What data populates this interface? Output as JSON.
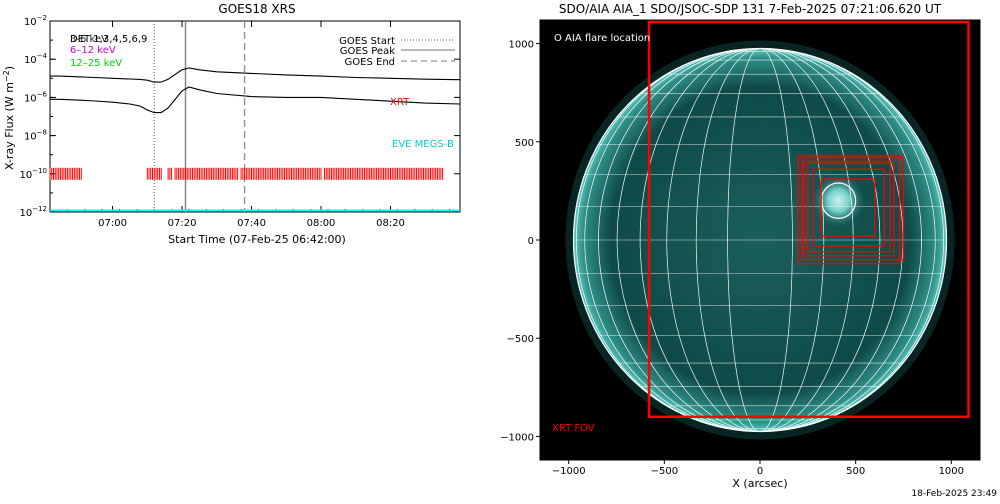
{
  "colors": {
    "background": "#ffffff",
    "axes": "#000000",
    "goes_curves": "#000000",
    "band_6_12": "#cc00cc",
    "band_12_25": "#00cc00",
    "xrt_marks": "#ff0000",
    "eve_megs": "#00ffff",
    "aia_disk": "#0e4a48",
    "aia_bright": "#7fe0d8",
    "grid_lines": "#ffffff",
    "aia_annotation": "#ffffff",
    "xrt_fov_box": "#ff0000",
    "footer_text": "#000000"
  },
  "chart_data": [
    {
      "type": "line",
      "title": "GOES18 XRS",
      "xlabel": "Start Time (07-Feb-25 06:42:00)",
      "ylabel": "X-ray Flux (W m⁻²)",
      "ylabel_main": "X-ray Flux (W m",
      "ylabel_sup": "−2",
      "ylabel_tail": ")",
      "y_scale": "log",
      "ylim": [
        1e-12,
        0.01
      ],
      "xlim": [
        "06:42",
        "08:40"
      ],
      "x_ticks": [
        "07:00",
        "07:20",
        "07:40",
        "08:00",
        "08:20"
      ],
      "y_ticks": [
        {
          "base": "10",
          "exp": "−2"
        },
        {
          "base": "10",
          "exp": "−4"
        },
        {
          "base": "10",
          "exp": "−6"
        },
        {
          "base": "10",
          "exp": "−8"
        },
        {
          "base": "10",
          "exp": "−10"
        },
        {
          "base": "10",
          "exp": "−12"
        }
      ],
      "band_labels": {
        "overlap_text": "DET 1,3,4,5,6,9",
        "overlap_text_2": "3-6 keV",
        "band_6_12": "6–12 keV",
        "band_12_25": "12–25 keV"
      },
      "legend": {
        "placement": "top-right",
        "entries": [
          {
            "label": "GOES Start",
            "style": "dotted",
            "time": "07:12"
          },
          {
            "label": "GOES Peak",
            "style": "solid",
            "time": "07:21"
          },
          {
            "label": "GOES End",
            "style": "dashed",
            "time": "07:38"
          }
        ]
      },
      "instrument_labels": {
        "xrt": "XRT",
        "eve": "EVE MEGS-B"
      },
      "series": [
        {
          "name": "",
          "x": [
            "06:42",
            "06:45",
            "06:50",
            "06:55",
            "07:00",
            "07:05",
            "07:08",
            "07:10",
            "07:12",
            "07:14",
            "07:16",
            "07:18",
            "07:20",
            "07:22",
            "07:25",
            "07:30",
            "07:40",
            "07:50",
            "08:00",
            "08:10",
            "08:20",
            "08:30",
            "08:40"
          ],
          "y": [
            1.3e-05,
            1.3e-05,
            1.2e-05,
            1.1e-05,
            1e-05,
            9.2e-06,
            8.8e-06,
            8e-06,
            6.3e-06,
            6.3e-06,
            8.9e-06,
            1.6e-05,
            2.8e-05,
            3.5e-05,
            2.8e-05,
            2.2e-05,
            1.8e-05,
            1.5e-05,
            1.3e-05,
            1.1e-05,
            1e-05,
            9e-06,
            8.4e-06
          ]
        },
        {
          "name": "",
          "x": [
            "06:42",
            "06:45",
            "06:50",
            "06:55",
            "07:00",
            "07:05",
            "07:08",
            "07:10",
            "07:12",
            "07:14",
            "07:16",
            "07:18",
            "07:20",
            "07:22",
            "07:25",
            "07:30",
            "07:40",
            "07:50",
            "08:00",
            "08:10",
            "08:20",
            "08:30",
            "08:40"
          ],
          "y": [
            8e-07,
            8e-07,
            7.2e-07,
            6.5e-07,
            5.6e-07,
            4.5e-07,
            3.5e-07,
            2.2e-07,
            1.6e-07,
            1.6e-07,
            2.8e-07,
            7.9e-07,
            2.2e-06,
            3.5e-06,
            2.5e-06,
            1.6e-06,
            1.1e-06,
            1e-06,
            1e-06,
            8e-07,
            6.3e-07,
            5e-07,
            4.5e-07
          ]
        }
      ],
      "xrt_intervals": [
        [
          "06:42",
          "06:51"
        ],
        [
          "07:10",
          "07:14"
        ],
        [
          "07:16",
          "07:17"
        ],
        [
          "07:18",
          "07:36"
        ],
        [
          "07:37",
          "08:00"
        ],
        [
          "08:01",
          "08:35"
        ]
      ],
      "eve_baseline": 1e-12
    },
    {
      "type": "scatter",
      "title": "SDO/AIA AIA_1 SDO/JSOC-SDP 131  7-Feb-2025 07:21:06.620 UT",
      "xlabel": "X (arcsec)",
      "ylabel": "",
      "xlim": [
        -1150,
        1150
      ],
      "ylim": [
        -1120,
        1120
      ],
      "x_ticks": [
        -1000,
        -500,
        0,
        500,
        1000
      ],
      "y_ticks": [
        -1000,
        -500,
        0,
        500,
        1000
      ],
      "x_tick_labels": [
        "−1000",
        "−500",
        "0",
        "500",
        "1000"
      ],
      "y_tick_labels": [
        "−1000",
        "−500",
        "0",
        "500",
        "1000"
      ],
      "solar_radius_arcsec": 975,
      "grid": true,
      "annotations": {
        "flare_legend": "O AIA flare location",
        "xrt_fov": "XRT FOV"
      },
      "flare_location": {
        "x": 410,
        "y": 200,
        "r": 90
      },
      "xrt_fov_large": {
        "x": [
          -580,
          1090
        ],
        "y": [
          -900,
          1110
        ]
      },
      "xrt_small_boxes": [
        {
          "x": [
            200,
            730
          ],
          "y": [
            -120,
            430
          ]
        },
        {
          "x": [
            230,
            700
          ],
          "y": [
            -80,
            400
          ]
        },
        {
          "x": [
            250,
            680
          ],
          "y": [
            -60,
            390
          ]
        },
        {
          "x": [
            280,
            650
          ],
          "y": [
            -30,
            360
          ]
        },
        {
          "x": [
            220,
            750
          ],
          "y": [
            -100,
            420
          ]
        },
        {
          "x": [
            320,
            600
          ],
          "y": [
            20,
            310
          ]
        }
      ]
    }
  ],
  "footer": {
    "timestamp": "18-Feb-2025 23:49"
  }
}
